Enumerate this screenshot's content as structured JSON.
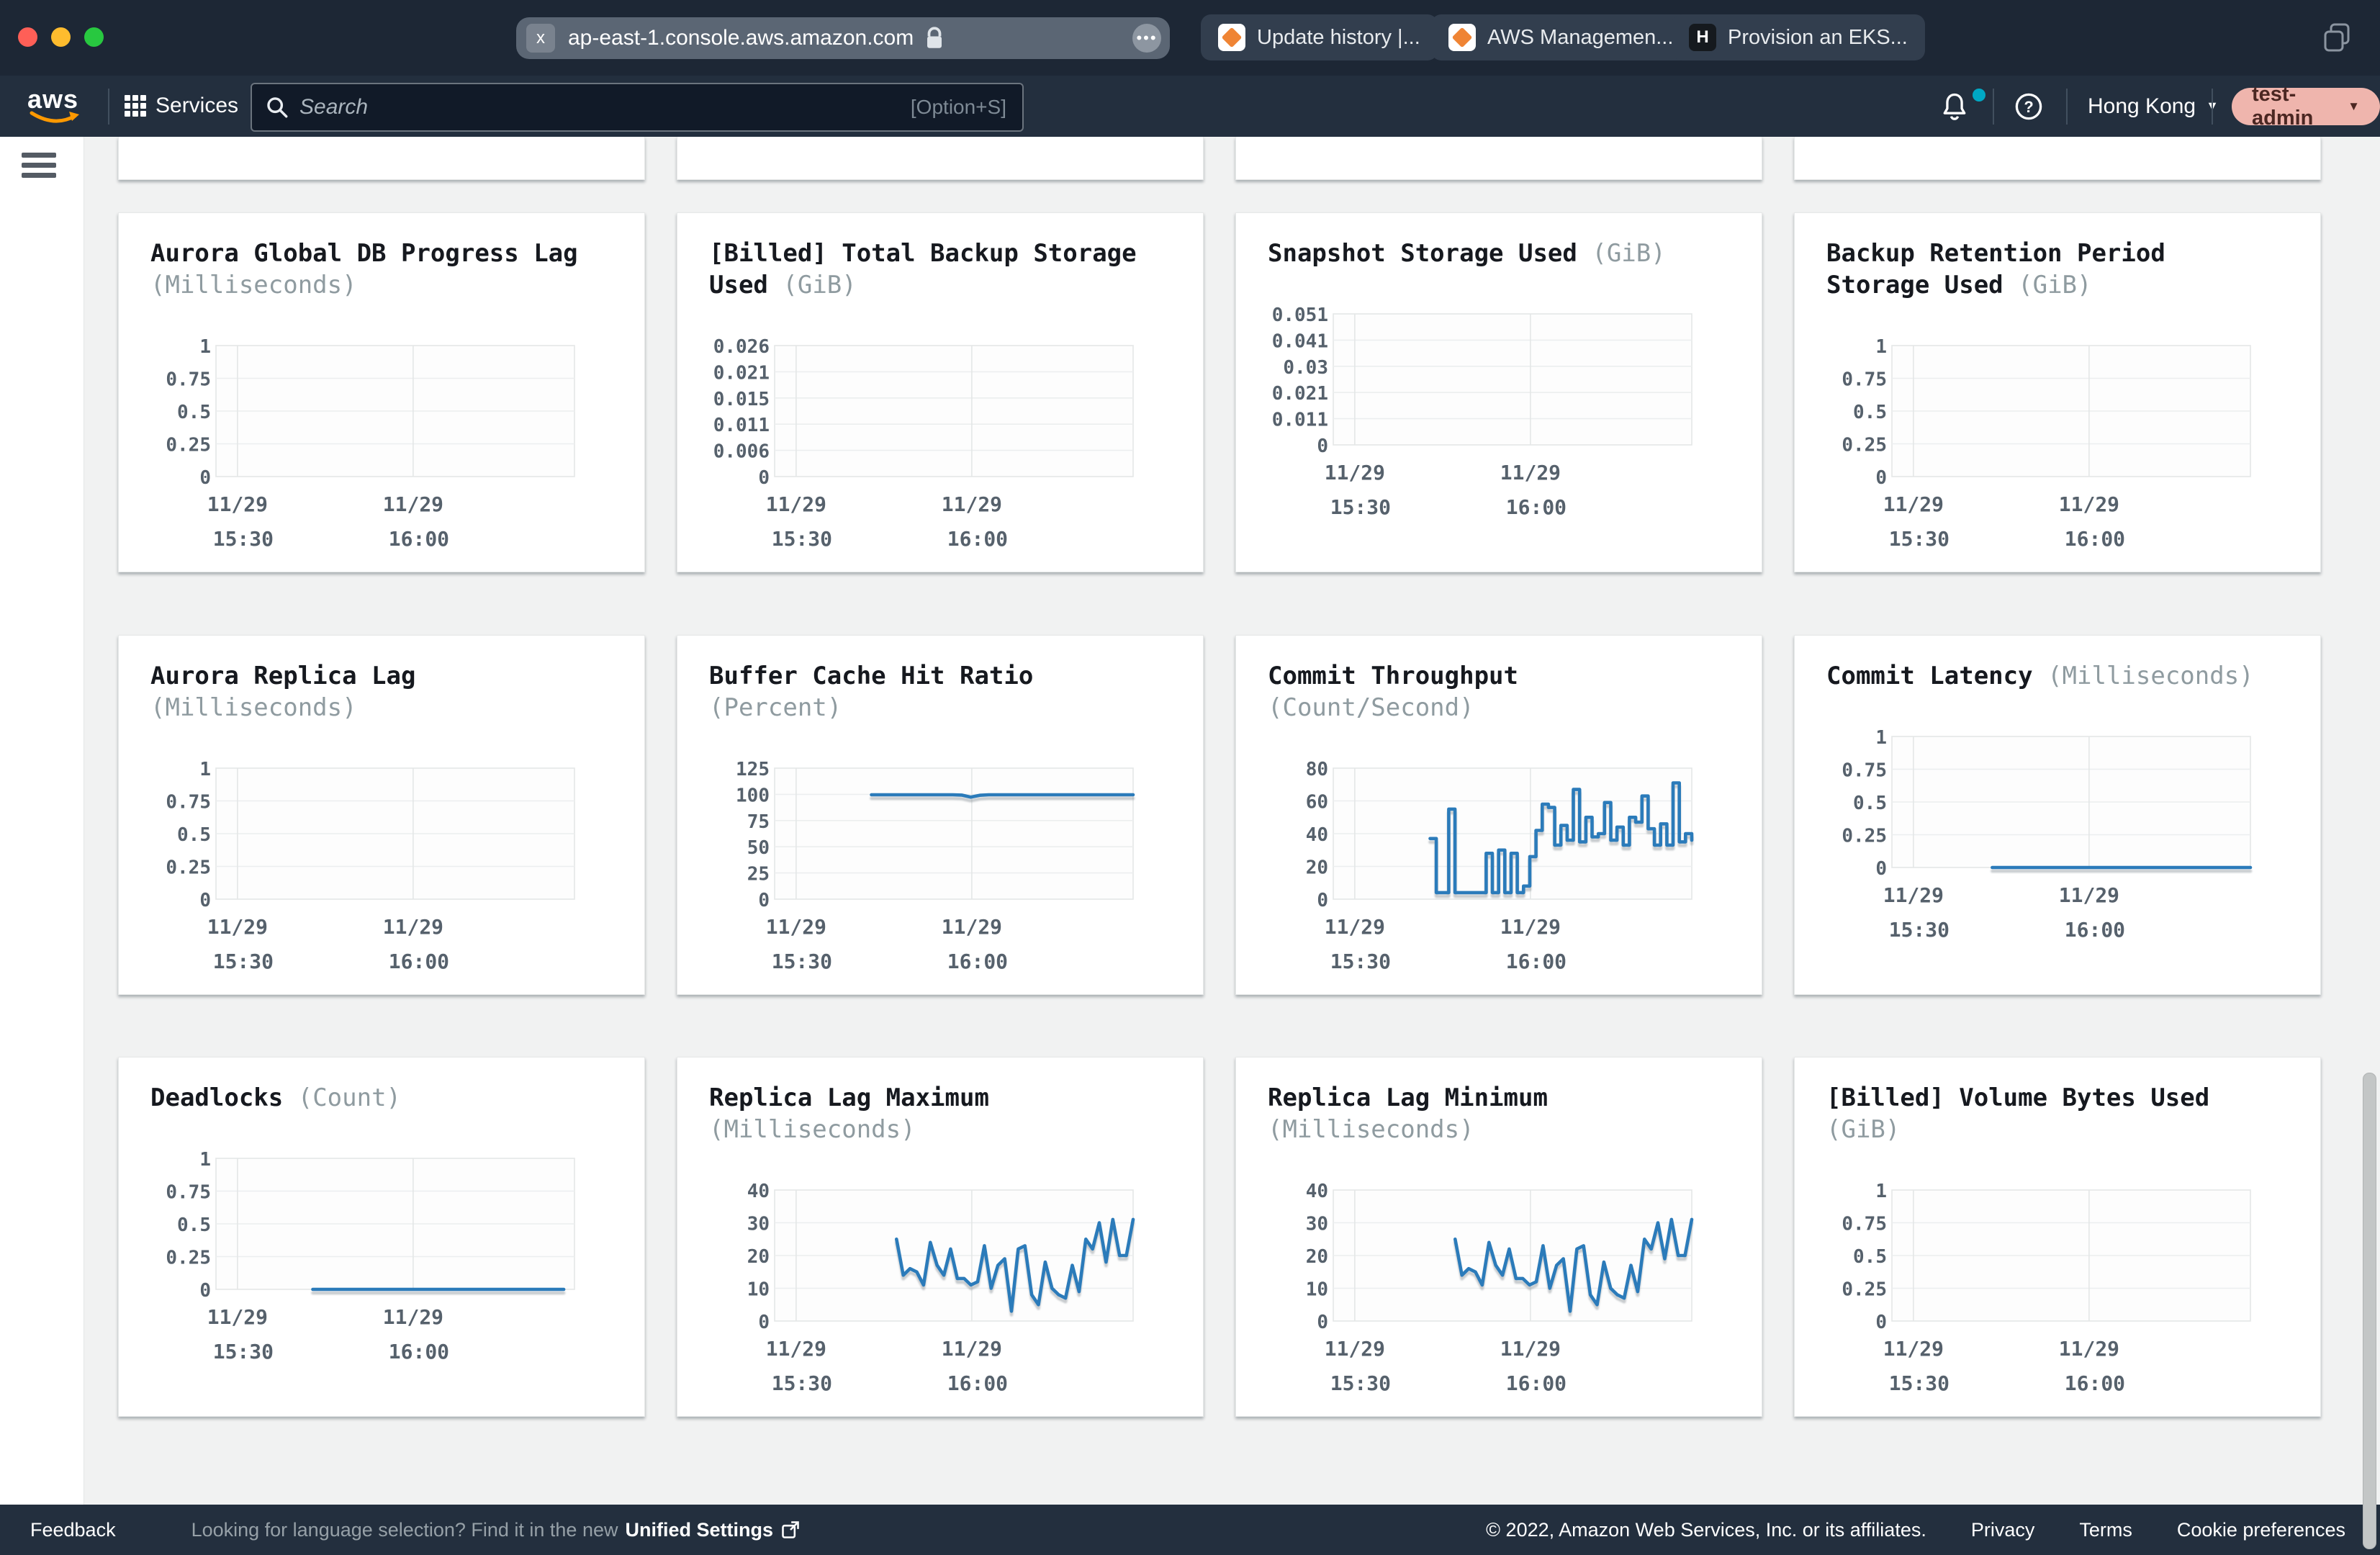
{
  "browser": {
    "url": "ap-east-1.console.aws.amazon.com",
    "url_badge": "x",
    "tabs": [
      {
        "label": "Update history |..."
      },
      {
        "label": "AWS Managemen..."
      },
      {
        "label": "Provision an EKS..."
      }
    ]
  },
  "navbar": {
    "logo": "aws",
    "services_label": "Services",
    "search_placeholder": "Search",
    "search_shortcut": "[Option+S]",
    "region": "Hong Kong",
    "account": "test-admin"
  },
  "footer": {
    "feedback": "Feedback",
    "language_message": "Looking for language selection? Find it in the new",
    "unified_settings": "Unified Settings",
    "copyright": "© 2022, Amazon Web Services, Inc. or its affiliates.",
    "privacy": "Privacy",
    "terms": "Terms",
    "cookie": "Cookie preferences"
  },
  "colors": {
    "line": "#2B7BBA",
    "chrome": "#1D2735",
    "navbar": "#232F3E",
    "card_title": "#16191F",
    "unit": "#8F9BA0",
    "axis": "#56616C",
    "grid": "#ECEEEF",
    "plot_border": "#E4E7E7",
    "page_bg": "#F1F2F2",
    "account_pill": "#EFB5AD",
    "notification": "#00A8C4",
    "favicon_orange": "#EF8434"
  },
  "top_partial_row": {
    "count": 4
  },
  "chart_data": [
    {
      "type": "line",
      "title": "Aurora Global DB Progress Lag",
      "unit": "(Milliseconds)",
      "y_ticks": [
        "1",
        "0.75",
        "0.5",
        "0.25",
        "0"
      ],
      "x_ticks": [
        "11/29 15:30",
        "11/29 16:00"
      ],
      "series": null
    },
    {
      "type": "line",
      "title": "[Billed] Total Backup Storage Used",
      "unit": "(GiB)",
      "y_ticks": [
        "0.026",
        "0.021",
        "0.015",
        "0.011",
        "0.006",
        "0"
      ],
      "x_ticks": [
        "11/29 15:30",
        "11/29 16:00"
      ],
      "series": null
    },
    {
      "type": "line",
      "title": "Snapshot Storage Used",
      "unit": "(GiB)",
      "y_ticks": [
        "0.051",
        "0.041",
        "0.03",
        "0.021",
        "0.011",
        "0"
      ],
      "x_ticks": [
        "11/29 15:30",
        "11/29 16:00"
      ],
      "series": null
    },
    {
      "type": "line",
      "title": "Backup Retention Period Storage Used",
      "unit": "(GiB)",
      "y_ticks": [
        "1",
        "0.75",
        "0.5",
        "0.25",
        "0"
      ],
      "x_ticks": [
        "11/29 15:30",
        "11/29 16:00"
      ],
      "series": null
    },
    {
      "type": "line",
      "title": "Aurora Replica Lag",
      "unit": "(Milliseconds)",
      "y_ticks": [
        "1",
        "0.75",
        "0.5",
        "0.25",
        "0"
      ],
      "x_ticks": [
        "11/29 15:30",
        "11/29 16:00"
      ],
      "series": null
    },
    {
      "type": "line",
      "title": "Buffer Cache Hit Ratio",
      "unit": "(Percent)",
      "y_ticks": [
        "125",
        "100",
        "75",
        "50",
        "25",
        "0"
      ],
      "x_ticks": [
        "11/29 15:30",
        "11/29 16:00"
      ],
      "series": {
        "interp": "linear",
        "start_pct": 27,
        "end_pct": 100,
        "values": [
          99.6,
          99.6,
          99.6,
          99.6,
          99.6,
          99.6,
          99.6,
          99.6,
          99.6,
          99.6,
          99.3,
          97.3,
          99.1,
          99.6,
          99.6,
          99.6,
          99.6,
          99.6,
          99.6,
          99.6,
          99.6,
          99.6,
          99.6,
          99.6,
          99.6,
          99.6,
          99.6,
          99.6,
          99.6,
          99.6
        ]
      }
    },
    {
      "type": "line",
      "title": "Commit Throughput",
      "unit": "(Count/Second)",
      "y_ticks": [
        "80",
        "60",
        "40",
        "20",
        "0"
      ],
      "x_ticks": [
        "11/29 15:30",
        "11/29 16:00"
      ],
      "series": {
        "interp": "step",
        "start_pct": 27,
        "end_pct": 100,
        "values": [
          37,
          4,
          4,
          55,
          4,
          4,
          4,
          4,
          4,
          28,
          4,
          30,
          4,
          28,
          4,
          8,
          26,
          42,
          58,
          56,
          33,
          45,
          36,
          67,
          35,
          50,
          38,
          40,
          59,
          36,
          44,
          33,
          50,
          47,
          63,
          43,
          33,
          46,
          33,
          71,
          35,
          40,
          36
        ]
      }
    },
    {
      "type": "line",
      "title": "Commit Latency",
      "unit": "(Milliseconds)",
      "y_ticks": [
        "1",
        "0.75",
        "0.5",
        "0.25",
        "0"
      ],
      "x_ticks": [
        "11/29 15:30",
        "11/29 16:00"
      ],
      "series": {
        "interp": "linear",
        "start_pct": 28,
        "end_pct": 100,
        "values": [
          0,
          0,
          0,
          0,
          0,
          0,
          0,
          0,
          0,
          0,
          0,
          0,
          0,
          0,
          0,
          0,
          0,
          0,
          0,
          0
        ]
      }
    },
    {
      "type": "line",
      "title": "Deadlocks",
      "unit": "(Count)",
      "y_ticks": [
        "1",
        "0.75",
        "0.5",
        "0.25",
        "0"
      ],
      "x_ticks": [
        "11/29 15:30",
        "11/29 16:00"
      ],
      "series": {
        "interp": "linear",
        "start_pct": 27,
        "end_pct": 97,
        "values": [
          0,
          0,
          0,
          0,
          0,
          0,
          0,
          0,
          0,
          0,
          0,
          0,
          0,
          0,
          0,
          0,
          0,
          0,
          0,
          0
        ]
      }
    },
    {
      "type": "line",
      "title": "Replica Lag Maximum",
      "unit": "(Milliseconds)",
      "y_ticks": [
        "40",
        "30",
        "20",
        "10",
        "0"
      ],
      "x_ticks": [
        "11/29 15:30",
        "11/29 16:00"
      ],
      "series": {
        "interp": "linear",
        "start_pct": 34,
        "end_pct": 100,
        "values": [
          25,
          14,
          16,
          15,
          11,
          24,
          17,
          14,
          22,
          13,
          13,
          11,
          12,
          23,
          10,
          17,
          19,
          3,
          22,
          23,
          8,
          5,
          18,
          10,
          8,
          7,
          17,
          9,
          25,
          22,
          30,
          18,
          31,
          20,
          20,
          31
        ]
      }
    },
    {
      "type": "line",
      "title": "Replica Lag Minimum",
      "unit": "(Milliseconds)",
      "y_ticks": [
        "40",
        "30",
        "20",
        "10",
        "0"
      ],
      "x_ticks": [
        "11/29 15:30",
        "11/29 16:00"
      ],
      "series": {
        "interp": "linear",
        "start_pct": 34,
        "end_pct": 100,
        "values": [
          25,
          14,
          16,
          15,
          11,
          24,
          17,
          14,
          22,
          13,
          13,
          11,
          12,
          23,
          10,
          17,
          19,
          3,
          22,
          23,
          8,
          5,
          18,
          10,
          8,
          7,
          17,
          9,
          25,
          22,
          30,
          19,
          31,
          20,
          20,
          31
        ]
      }
    },
    {
      "type": "line",
      "title": "[Billed] Volume Bytes Used",
      "unit": "(GiB)",
      "y_ticks": [
        "1",
        "0.75",
        "0.5",
        "0.25",
        "0"
      ],
      "x_ticks": [
        "11/29 15:30",
        "11/29 16:00"
      ],
      "series": null
    }
  ]
}
